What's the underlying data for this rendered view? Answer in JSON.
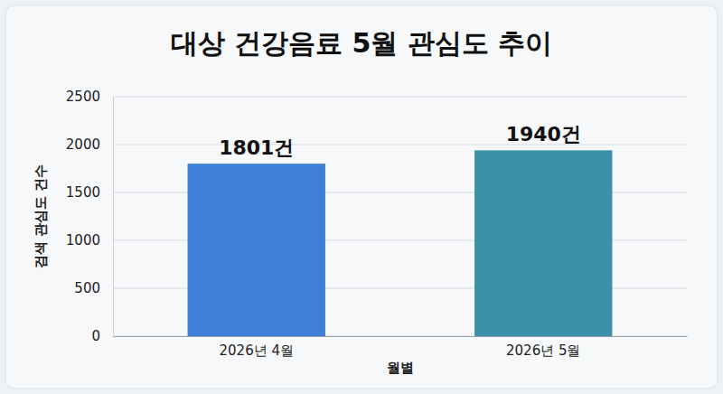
{
  "chart_data": {
    "type": "bar",
    "title": "대상 건강음료 5월 관심도 추이",
    "x_label": "월별",
    "y_label": "검색 관심도 건수",
    "categories": [
      "2026년 4월",
      "2026년 5월"
    ],
    "values": [
      1801,
      1940
    ],
    "value_labels": [
      "1801건",
      "1940건"
    ],
    "colors": [
      "#3d80d6",
      "#3c90a9"
    ],
    "ylim": [
      0,
      2500
    ],
    "yticks": [
      0,
      500,
      1000,
      1500,
      2000,
      2500
    ],
    "grid": true,
    "data_labels": true
  }
}
